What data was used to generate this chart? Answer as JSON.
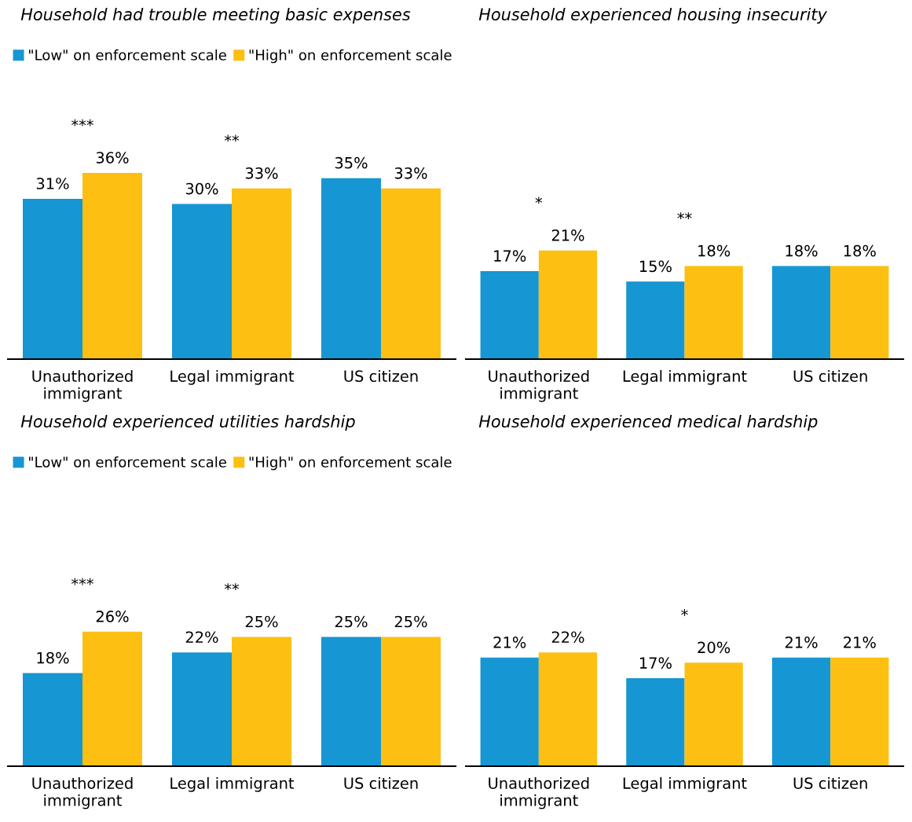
{
  "chart_data": [
    {
      "type": "bar",
      "title": "Household had trouble meeting basic expenses",
      "categories": [
        "Unauthorized\nimmigrant",
        "Legal immigrant",
        "US citizen"
      ],
      "series": [
        {
          "name": "\"Low\" on enforcement scale",
          "color": "#1696d2",
          "values": [
            31,
            30,
            35
          ],
          "value_labels": [
            "31%",
            "30%",
            "35%"
          ]
        },
        {
          "name": "\"High\" on enforcement scale",
          "color": "#fdbf11",
          "values": [
            36,
            33,
            33
          ],
          "value_labels": [
            "36%",
            "33%",
            "33%"
          ]
        }
      ],
      "legend": "top left",
      "tick_labels": "x",
      "annotations": [
        "***",
        "**"
      ]
    },
    {
      "type": "bar",
      "title": "Household experienced housing insecurity",
      "categories": [
        "Unauthorized\nimmigrant",
        "Legal immigrant",
        "US citizen"
      ],
      "series": [
        {
          "color": "#1696d2",
          "values": [
            17,
            15,
            18
          ],
          "value_labels": [
            "17%",
            "15%",
            "18%"
          ]
        },
        {
          "color": "#fdbf11",
          "values": [
            21,
            18,
            18
          ],
          "value_labels": [
            "21%",
            "18%",
            "18%"
          ]
        }
      ],
      "tick_labels": "x",
      "annotations": [
        "*",
        "**"
      ]
    },
    {
      "type": "bar",
      "title": "Household experienced utilities hardship",
      "categories": [
        "Unauthorized\nimmigrant",
        "Legal immigrant",
        "US citizen"
      ],
      "series": [
        {
          "name": "\"Low\" on enforcement scale",
          "color": "#1696d2",
          "values": [
            18,
            22,
            25
          ],
          "value_labels": [
            "18%",
            "22%",
            "25%"
          ]
        },
        {
          "name": "\"High\" on enforcement scale",
          "color": "#fdbf11",
          "values": [
            26,
            25,
            25
          ],
          "value_labels": [
            "26%",
            "25%",
            "25%"
          ]
        }
      ],
      "legend": "top left",
      "tick_labels": "x",
      "annotations": [
        "***",
        "**"
      ]
    },
    {
      "type": "bar",
      "title": "Household experienced medical hardship",
      "categories": [
        "Unauthorized\nimmigrant",
        "Legal immigrant",
        "US citizen"
      ],
      "series": [
        {
          "color": "#1696d2",
          "values": [
            21,
            17,
            21
          ],
          "value_labels": [
            "21%",
            "17%",
            "21%"
          ]
        },
        {
          "color": "#fdbf11",
          "values": [
            22,
            20,
            21
          ],
          "value_labels": [
            "22%",
            "20%",
            "21%"
          ]
        }
      ],
      "tick_labels": "x",
      "annotations": [
        "*"
      ]
    }
  ]
}
